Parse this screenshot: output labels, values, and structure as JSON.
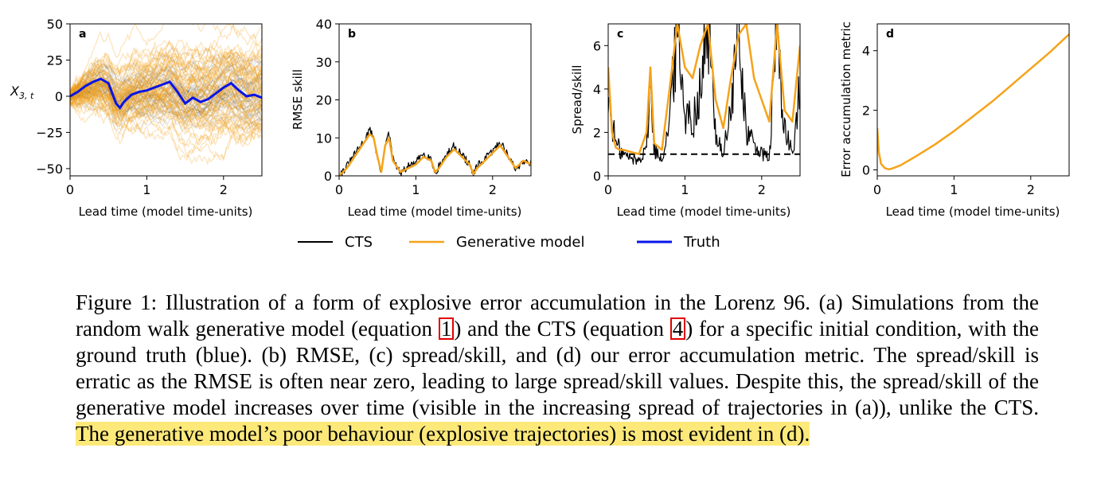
{
  "panels": [
    {
      "id": "a",
      "panel_label": "a",
      "ylabel_main": "X",
      "ylabel_sub": "3, t",
      "xlabel": "Lead time (model time-units)",
      "xlim": [
        0,
        2.5
      ],
      "ylim": [
        -55,
        50
      ],
      "xticks": [
        "0",
        "1",
        "2"
      ],
      "xtick_values": [
        0,
        1,
        2
      ],
      "yticks": [
        "50",
        "25",
        "0",
        "−25",
        "−50"
      ],
      "ytick_values": [
        50,
        25,
        0,
        -25,
        -50
      ]
    },
    {
      "id": "b",
      "panel_label": "b",
      "ylabel": "RMSE skill",
      "xlabel": "Lead time (model time-units)",
      "xlim": [
        0,
        2.5
      ],
      "ylim": [
        0,
        40
      ],
      "xticks": [
        "0",
        "1",
        "2"
      ],
      "xtick_values": [
        0,
        1,
        2
      ],
      "yticks": [
        "40",
        "30",
        "20",
        "10",
        "0"
      ],
      "ytick_values": [
        40,
        30,
        20,
        10,
        0
      ]
    },
    {
      "id": "c",
      "panel_label": "c",
      "ylabel": "Spread/skill",
      "xlabel": "Lead time (model time-units)",
      "xlim": [
        0,
        2.5
      ],
      "ylim": [
        0,
        7
      ],
      "xticks": [
        "0",
        "1",
        "2"
      ],
      "xtick_values": [
        0,
        1,
        2
      ],
      "yticks": [
        "6",
        "4",
        "2",
        "0"
      ],
      "ytick_values": [
        6,
        4,
        2,
        0
      ]
    },
    {
      "id": "d",
      "panel_label": "d",
      "ylabel": "Error accumulation metric",
      "xlabel": "Lead time (model time-units)",
      "xlim": [
        0,
        2.5
      ],
      "ylim": [
        -0.2,
        4.9
      ],
      "xticks": [
        "0",
        "1",
        "2"
      ],
      "xtick_values": [
        0,
        1,
        2
      ],
      "yticks": [
        "4",
        "2",
        "0"
      ],
      "ytick_values": [
        4,
        2,
        0
      ]
    }
  ],
  "legend": [
    {
      "label": "CTS",
      "color": "#000000"
    },
    {
      "label": "Generative model",
      "color": "#f5a31a"
    },
    {
      "label": "Truth",
      "color": "#0a14e6"
    }
  ],
  "chart_data": [
    {
      "type": "line",
      "panel": "a",
      "series": [
        {
          "name": "Truth",
          "color": "#0a14e6",
          "x": [
            0,
            0.1,
            0.2,
            0.3,
            0.4,
            0.5,
            0.55,
            0.6,
            0.65,
            0.7,
            0.8,
            0.9,
            1.0,
            1.1,
            1.2,
            1.3,
            1.4,
            1.5,
            1.6,
            1.7,
            1.8,
            1.9,
            2.0,
            2.1,
            2.2,
            2.3,
            2.4,
            2.5
          ],
          "y": [
            0,
            3,
            7,
            10,
            12,
            9,
            2,
            -5,
            -8,
            -4,
            1,
            3,
            4,
            6,
            8,
            10,
            3,
            -5,
            -1,
            -4,
            -2,
            2,
            6,
            9,
            4,
            0,
            1,
            -1
          ]
        },
        {
          "name": "CTS",
          "color": "#000000",
          "x": [
            0,
            2.5
          ],
          "y": [
            0,
            0
          ]
        },
        {
          "name": "Generative model",
          "color": "#f5a31a",
          "x": [
            0,
            2.5
          ],
          "y": [
            0,
            0
          ]
        }
      ]
    },
    {
      "type": "line",
      "panel": "b",
      "series": [
        {
          "name": "Generative model",
          "color": "#f5a31a",
          "x": [
            0,
            0.1,
            0.2,
            0.3,
            0.4,
            0.45,
            0.5,
            0.55,
            0.6,
            0.65,
            0.7,
            0.8,
            0.9,
            1.0,
            1.1,
            1.2,
            1.25,
            1.3,
            1.4,
            1.5,
            1.6,
            1.7,
            1.75,
            1.8,
            1.9,
            2.0,
            2.1,
            2.2,
            2.3,
            2.4,
            2.5
          ],
          "y": [
            0,
            2,
            5,
            8,
            11,
            10,
            5,
            1,
            8,
            10,
            4,
            1,
            2,
            3,
            5,
            4,
            1,
            2,
            5,
            7,
            5,
            3,
            0.5,
            2,
            4,
            6,
            8,
            5,
            2,
            4,
            3
          ]
        },
        {
          "name": "CTS",
          "color": "#000000",
          "x": [
            0,
            0.1,
            0.2,
            0.3,
            0.4,
            0.45,
            0.5,
            0.55,
            0.6,
            0.65,
            0.7,
            0.8,
            0.9,
            1.0,
            1.1,
            1.2,
            1.25,
            1.3,
            1.4,
            1.5,
            1.6,
            1.7,
            1.75,
            1.8,
            1.9,
            2.0,
            2.1,
            2.2,
            2.3,
            2.4,
            2.5
          ],
          "y": [
            0,
            2.5,
            5.5,
            8.5,
            12,
            10.5,
            4.5,
            0.5,
            8.5,
            11,
            4.5,
            0.5,
            2.5,
            3.5,
            6,
            4.5,
            0.5,
            2.5,
            5.5,
            8,
            5.5,
            3,
            0.3,
            2.5,
            4.5,
            6.5,
            9,
            5.5,
            1.5,
            4,
            3.5
          ]
        }
      ]
    },
    {
      "type": "line",
      "panel": "c",
      "series": [
        {
          "name": "Generative model",
          "color": "#f5a31a",
          "x": [
            0,
            0.05,
            0.1,
            0.15,
            0.2,
            0.3,
            0.4,
            0.5,
            0.55,
            0.6,
            0.7,
            0.8,
            0.9,
            1.0,
            1.1,
            1.2,
            1.3,
            1.4,
            1.5,
            1.6,
            1.7,
            1.8,
            1.9,
            2.0,
            2.1,
            2.2,
            2.3,
            2.4,
            2.5
          ],
          "y": [
            5,
            2,
            1.3,
            1.2,
            1.2,
            1.1,
            1.0,
            2.0,
            5.0,
            1.5,
            1.2,
            4.0,
            7.0,
            5.0,
            4.5,
            6.0,
            7.0,
            3.5,
            2.2,
            4.5,
            6.5,
            7.0,
            4.5,
            3.5,
            2.5,
            7.0,
            3.0,
            2.5,
            6.0
          ]
        },
        {
          "name": "CTS",
          "color": "#000000",
          "x": [
            0,
            0.05,
            0.1,
            0.15,
            0.2,
            0.3,
            0.4,
            0.5,
            0.55,
            0.6,
            0.7,
            0.8,
            0.9,
            1.0,
            1.1,
            1.2,
            1.3,
            1.4,
            1.5,
            1.6,
            1.7,
            1.8,
            1.9,
            2.0,
            2.1,
            2.2,
            2.3,
            2.4,
            2.5
          ],
          "y": [
            3.5,
            2.5,
            1.5,
            1.2,
            1.0,
            0.8,
            0.7,
            1.5,
            4.0,
            1.2,
            0.8,
            2.5,
            7.0,
            3.0,
            2.5,
            4.0,
            7.0,
            2.0,
            1.0,
            3.0,
            7.0,
            2.0,
            1.5,
            1.0,
            0.8,
            7.0,
            2.0,
            1.0,
            4.0
          ]
        },
        {
          "name": "",
          "color": "#000000",
          "dashed": true,
          "x": [
            0,
            2.5
          ],
          "y": [
            1,
            1
          ]
        }
      ]
    },
    {
      "type": "line",
      "panel": "d",
      "series": [
        {
          "name": "Generative model",
          "color": "#f5a31a",
          "x": [
            0,
            0.02,
            0.05,
            0.1,
            0.15,
            0.2,
            0.3,
            0.5,
            0.75,
            1.0,
            1.25,
            1.5,
            1.75,
            2.0,
            2.25,
            2.5
          ],
          "y": [
            1.4,
            0.6,
            0.2,
            0.06,
            0.02,
            0.05,
            0.15,
            0.45,
            0.85,
            1.3,
            1.8,
            2.3,
            2.85,
            3.4,
            3.95,
            4.55
          ]
        }
      ]
    }
  ],
  "caption": {
    "part1": "Figure 1: Illustration of a form of explosive error accumulation in the Lorenz 96. (a) Simulations from the random walk generative model (equation ",
    "ref1": "1",
    "part2": ") and the CTS (equation ",
    "ref2": "4",
    "part3": ") for a specific initial condition, with the ground truth (blue). (b) RMSE, (c) spread/skill, and (d) our error accumulation metric. The spread/skill is erratic as the RMSE is often near zero, leading to large spread/skill values. Despite this, the spread/skill of the generative model increases over time (visible in the increasing spread of trajectories in (a)), unlike the CTS. ",
    "highlight": "The generative model’s poor behaviour (explosive trajectories) is most evident in (d)."
  }
}
